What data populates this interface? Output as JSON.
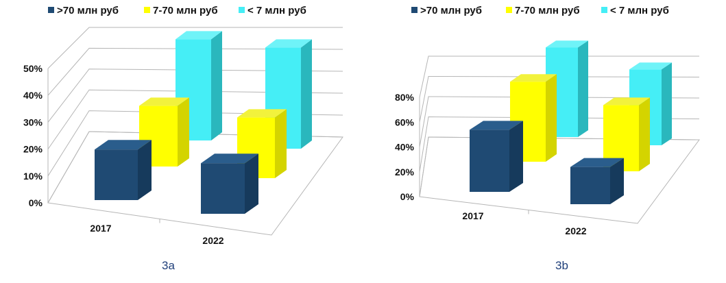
{
  "colors": {
    "series_front": "#1f4a73",
    "series_side": "#163a5c",
    "series_top": "#2a5d8c",
    "yellow_front": "#ffff00",
    "yellow_side": "#d4d400",
    "yellow_top": "#f2f23c",
    "cyan_front": "#45eef6",
    "cyan_side": "#2ab7bd",
    "cyan_top": "#6ff3f8",
    "grid": "#b5b5b5",
    "caption": "#1f3f7a"
  },
  "chart_data": [
    {
      "type": "bar",
      "title": "",
      "caption": "3a",
      "categories": [
        "2017",
        "2022"
      ],
      "series": [
        {
          "name": ">70 млн руб",
          "values": [
            20,
            20
          ]
        },
        {
          "name": "7-70 млн руб",
          "values": [
            24,
            24
          ]
        },
        {
          "name": "< 7 млн руб",
          "values": [
            40,
            40
          ]
        }
      ],
      "ylim": [
        0,
        50
      ],
      "yticks": [
        "0%",
        "10%",
        "20%",
        "30%",
        "40%",
        "50%"
      ],
      "xlabel": "",
      "ylabel": ""
    },
    {
      "type": "bar",
      "title": "",
      "caption": "3b",
      "categories": [
        "2017",
        "2022"
      ],
      "series": [
        {
          "name": ">70 млн руб",
          "values": [
            45,
            27
          ]
        },
        {
          "name": "7-70 млн руб",
          "values": [
            58,
            48
          ]
        },
        {
          "name": "< 7 млн руб",
          "values": [
            65,
            55
          ]
        }
      ],
      "ylim": [
        0,
        80
      ],
      "yticks": [
        "0%",
        "20%",
        "40%",
        "60%",
        "80%"
      ],
      "xlabel": "",
      "ylabel": ""
    }
  ]
}
